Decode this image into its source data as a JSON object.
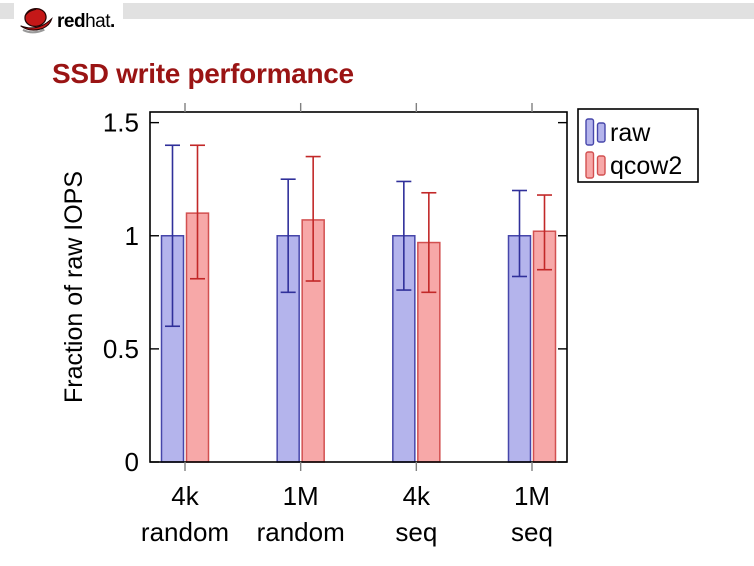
{
  "logo": {
    "bold": "red",
    "regular": "hat",
    "dot": "."
  },
  "slide": {
    "title": "SSD write performance"
  },
  "chart_data": {
    "type": "bar",
    "title": "SSD write performance",
    "xlabel": "",
    "ylabel": "Fraction of raw IOPS",
    "categories": [
      "4k random",
      "1M random",
      "4k seq",
      "1M seq"
    ],
    "category_label_lines": [
      [
        "4k",
        "random"
      ],
      [
        "1M",
        "random"
      ],
      [
        "4k",
        "seq"
      ],
      [
        "1M",
        "seq"
      ]
    ],
    "series": [
      {
        "name": "raw",
        "values": [
          1.0,
          1.0,
          1.0,
          1.0
        ],
        "err_low": [
          0.6,
          0.75,
          0.76,
          0.82
        ],
        "err_high": [
          1.4,
          1.25,
          1.24,
          1.2
        ],
        "fill": "#b4b4ec",
        "border": "#4646aa",
        "error_color": "#30309a"
      },
      {
        "name": "qcow2",
        "values": [
          1.1,
          1.07,
          0.97,
          1.02
        ],
        "err_low": [
          0.81,
          0.8,
          0.75,
          0.85
        ],
        "err_high": [
          1.4,
          1.35,
          1.19,
          1.18
        ],
        "fill": "#f7a8a8",
        "border": "#d25050",
        "error_color": "#c22828"
      }
    ],
    "yticks": [
      0,
      0.5,
      1,
      1.5
    ],
    "ytick_labels": [
      "0",
      "0.5",
      "1",
      "1.5"
    ],
    "ylim": [
      0,
      1.547
    ],
    "grid": false,
    "legend": {
      "position": "outside-top-right",
      "entries": [
        "raw",
        "qcow2"
      ]
    }
  }
}
